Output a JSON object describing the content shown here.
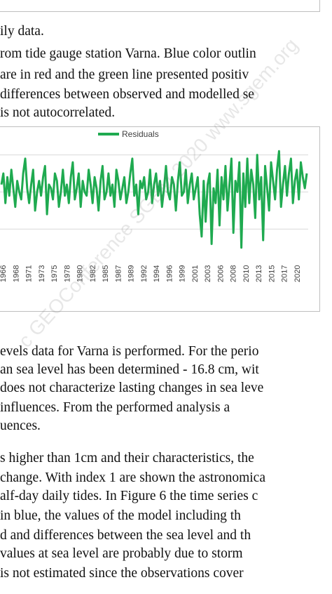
{
  "text_top": [
    "ily data.",
    "rom tide gauge station Varna. Blue color outlin",
    "are in red and the green line presented positiv",
    " differences between observed and modelled se",
    "is not autocorrelated."
  ],
  "text_bottom": [
    "evels data for Varna is performed. For the perio",
    "an sea level has been determined - 16.8 cm, wit",
    "does not characterize lasting changes in sea leve",
    " influences.  From  the  performed  analysis  a",
    "uences.",
    "s higher than 1cm and their characteristics, the",
    "change. With index 1 are shown the astronomica",
    "alf-day daily tides. In Figure 6 the time series c",
    " in blue, the values of the model including th",
    "d and differences between the sea level and th",
    " values at sea level are probably due to storm",
    " is not estimated since the observations cover"
  ],
  "watermark": "c GEOConference SGEM 2020 www.sgem.org",
  "chart_data": {
    "type": "line",
    "legend": [
      "Residuals"
    ],
    "legend_position": "top",
    "x_tick_labels": [
      "1966",
      "1968",
      "1971",
      "1973",
      "1975",
      "1978",
      "1980",
      "1982",
      "1985",
      "1987",
      "1989",
      "1992",
      "1994",
      "1996",
      "1999",
      "2001",
      "2003",
      "2006",
      "2008",
      "2010",
      "2013",
      "2015",
      "2017",
      "2020"
    ],
    "series": [
      {
        "name": "Residuals",
        "color": "#1faa50",
        "values": [
          2,
          5,
          -3,
          4,
          -1,
          6,
          1,
          -4,
          3,
          0,
          -2,
          5,
          9,
          1,
          -3,
          2,
          6,
          -5,
          0,
          3,
          -1,
          4,
          7,
          -6,
          2,
          1,
          -2,
          5,
          3,
          -4,
          0,
          6,
          -1,
          2,
          -3,
          4,
          8,
          -2,
          1,
          5,
          -4,
          3,
          0,
          -1,
          6,
          2,
          -3,
          4,
          1,
          -5,
          3,
          7,
          -2,
          0,
          5,
          -1,
          2,
          -4,
          6,
          3,
          -2,
          1,
          4,
          -3,
          0,
          5,
          9,
          -1,
          2,
          -6,
          3,
          1,
          4,
          -2,
          0,
          6,
          -3,
          2,
          5,
          -1,
          3,
          -4,
          1,
          7,
          0,
          -2,
          4,
          2,
          -5,
          3,
          8,
          -1,
          0,
          6,
          -3,
          2,
          5,
          -2,
          1,
          4,
          -6,
          -12,
          3,
          -8,
          2,
          5,
          -14,
          1,
          -3,
          6,
          -9,
          4,
          -2,
          7,
          -5,
          2,
          9,
          -11,
          3,
          0,
          8,
          -15,
          5,
          -4,
          9,
          -3,
          6,
          2,
          -7,
          10,
          -2,
          4,
          -13,
          7,
          1,
          -5,
          8,
          3,
          -2,
          6,
          11,
          -4,
          2,
          7,
          -1,
          5,
          9,
          -3,
          3,
          6,
          -2,
          8,
          4,
          1,
          5
        ],
        "grid_y": [
          10,
          0,
          -10
        ]
      }
    ],
    "ylim": [
      -16,
      12
    ],
    "grid": true
  }
}
